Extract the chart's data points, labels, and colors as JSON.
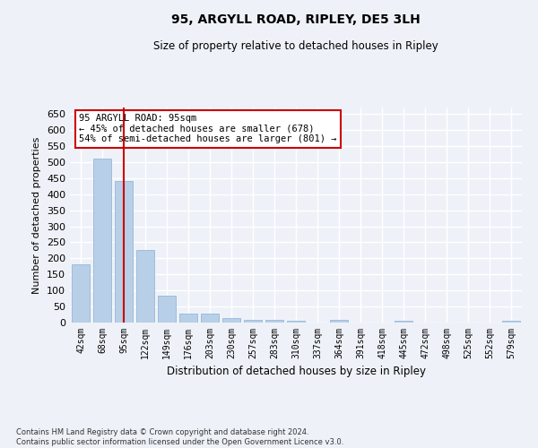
{
  "title": "95, ARGYLL ROAD, RIPLEY, DE5 3LH",
  "subtitle": "Size of property relative to detached houses in Ripley",
  "xlabel": "Distribution of detached houses by size in Ripley",
  "ylabel": "Number of detached properties",
  "categories": [
    "42sqm",
    "68sqm",
    "95sqm",
    "122sqm",
    "149sqm",
    "176sqm",
    "203sqm",
    "230sqm",
    "257sqm",
    "283sqm",
    "310sqm",
    "337sqm",
    "364sqm",
    "391sqm",
    "418sqm",
    "445sqm",
    "472sqm",
    "498sqm",
    "525sqm",
    "552sqm",
    "579sqm"
  ],
  "values": [
    181,
    510,
    442,
    226,
    84,
    28,
    28,
    15,
    9,
    7,
    6,
    0,
    7,
    0,
    0,
    5,
    0,
    0,
    0,
    0,
    5
  ],
  "bar_color": "#b8cfe8",
  "bar_edge_color": "#8ab0d4",
  "highlight_index": 2,
  "highlight_color": "#cc0000",
  "annotation_text": "95 ARGYLL ROAD: 95sqm\n← 45% of detached houses are smaller (678)\n54% of semi-detached houses are larger (801) →",
  "annotation_box_color": "#ffffff",
  "annotation_box_edge_color": "#cc0000",
  "ylim": [
    0,
    670
  ],
  "yticks": [
    0,
    50,
    100,
    150,
    200,
    250,
    300,
    350,
    400,
    450,
    500,
    550,
    600,
    650
  ],
  "footer": "Contains HM Land Registry data © Crown copyright and database right 2024.\nContains public sector information licensed under the Open Government Licence v3.0.",
  "background_color": "#eef2f8",
  "plot_bg_color": "#eef2f8",
  "grid_color": "#ffffff"
}
